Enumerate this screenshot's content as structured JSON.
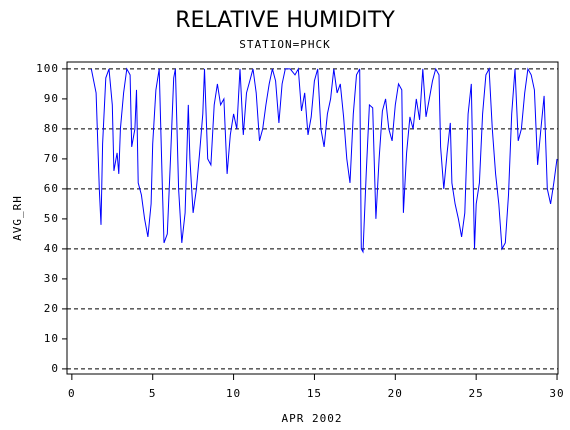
{
  "chart_data": {
    "type": "line",
    "title": "RELATIVE HUMIDITY",
    "subtitle": "STATION=PHCK",
    "x_label": "APR 2002",
    "y_label": "AVG_RH",
    "xlim": [
      -0.3,
      30.06
    ],
    "ylim": [
      -1.7,
      102.3
    ],
    "xticks": [
      0,
      5,
      10,
      15,
      20,
      25,
      30
    ],
    "yticks": [
      0,
      10,
      20,
      30,
      40,
      50,
      60,
      70,
      80,
      90,
      100
    ],
    "grid_step": 20,
    "series": [
      {
        "name": "AVG_RH",
        "color": "#0000ff",
        "x": [
          1.2,
          1.5,
          1.7,
          1.8,
          1.9,
          2.1,
          2.3,
          2.5,
          2.6,
          2.8,
          2.9,
          3.0,
          3.2,
          3.4,
          3.6,
          3.7,
          3.9,
          4.0,
          4.1,
          4.3,
          4.5,
          4.7,
          4.9,
          5.0,
          5.2,
          5.4,
          5.6,
          5.7,
          5.9,
          6.1,
          6.3,
          6.4,
          6.6,
          6.8,
          7.0,
          7.2,
          7.3,
          7.5,
          7.7,
          7.9,
          8.1,
          8.2,
          8.4,
          8.6,
          8.8,
          9.0,
          9.2,
          9.4,
          9.6,
          9.8,
          10.0,
          10.2,
          10.4,
          10.6,
          10.8,
          11.0,
          11.2,
          11.4,
          11.6,
          11.8,
          12.0,
          12.2,
          12.4,
          12.6,
          12.8,
          13.0,
          13.2,
          13.5,
          13.8,
          14.0,
          14.2,
          14.4,
          14.6,
          14.8,
          15.0,
          15.2,
          15.4,
          15.6,
          15.8,
          16.0,
          16.2,
          16.4,
          16.6,
          16.8,
          17.0,
          17.2,
          17.4,
          17.6,
          17.8,
          17.9,
          18.0,
          18.2,
          18.4,
          18.6,
          18.8,
          19.0,
          19.2,
          19.4,
          19.6,
          19.8,
          20.0,
          20.2,
          20.4,
          20.5,
          20.7,
          20.9,
          21.1,
          21.3,
          21.5,
          21.7,
          21.9,
          22.1,
          22.3,
          22.5,
          22.7,
          22.8,
          23.0,
          23.2,
          23.4,
          23.5,
          23.7,
          23.9,
          24.1,
          24.3,
          24.5,
          24.7,
          24.9,
          25.0,
          25.2,
          25.4,
          25.6,
          25.8,
          26.0,
          26.2,
          26.4,
          26.6,
          26.8,
          27.0,
          27.2,
          27.4,
          27.6,
          27.8,
          28.0,
          28.2,
          28.4,
          28.6,
          28.8,
          29.0,
          29.2,
          29.4,
          29.6,
          29.8,
          30.0
        ],
        "values": [
          100,
          92,
          60,
          48,
          75,
          97,
          100,
          88,
          66,
          72,
          65,
          80,
          92,
          100,
          98,
          74,
          80,
          93,
          62,
          58,
          50,
          44,
          55,
          75,
          93,
          100,
          60,
          42,
          45,
          70,
          97,
          100,
          60,
          42,
          52,
          88,
          70,
          52,
          60,
          72,
          85,
          100,
          70,
          68,
          88,
          95,
          88,
          90,
          65,
          78,
          85,
          80,
          100,
          78,
          92,
          96,
          100,
          92,
          76,
          80,
          88,
          95,
          100,
          96,
          82,
          95,
          100,
          100,
          98,
          100,
          86,
          92,
          78,
          84,
          96,
          100,
          80,
          74,
          85,
          90,
          100,
          92,
          95,
          84,
          70,
          62,
          85,
          98,
          100,
          40,
          39,
          65,
          88,
          87,
          50,
          70,
          86,
          90,
          80,
          76,
          88,
          95,
          93,
          52,
          72,
          84,
          80,
          90,
          83,
          100,
          84,
          90,
          96,
          100,
          98,
          74,
          60,
          72,
          82,
          62,
          55,
          50,
          44,
          52,
          85,
          95,
          40,
          55,
          62,
          85,
          98,
          100,
          80,
          65,
          55,
          40,
          42,
          58,
          85,
          100,
          76,
          80,
          92,
          100,
          98,
          93,
          68,
          80,
          91,
          60,
          55,
          62,
          70
        ]
      }
    ]
  }
}
